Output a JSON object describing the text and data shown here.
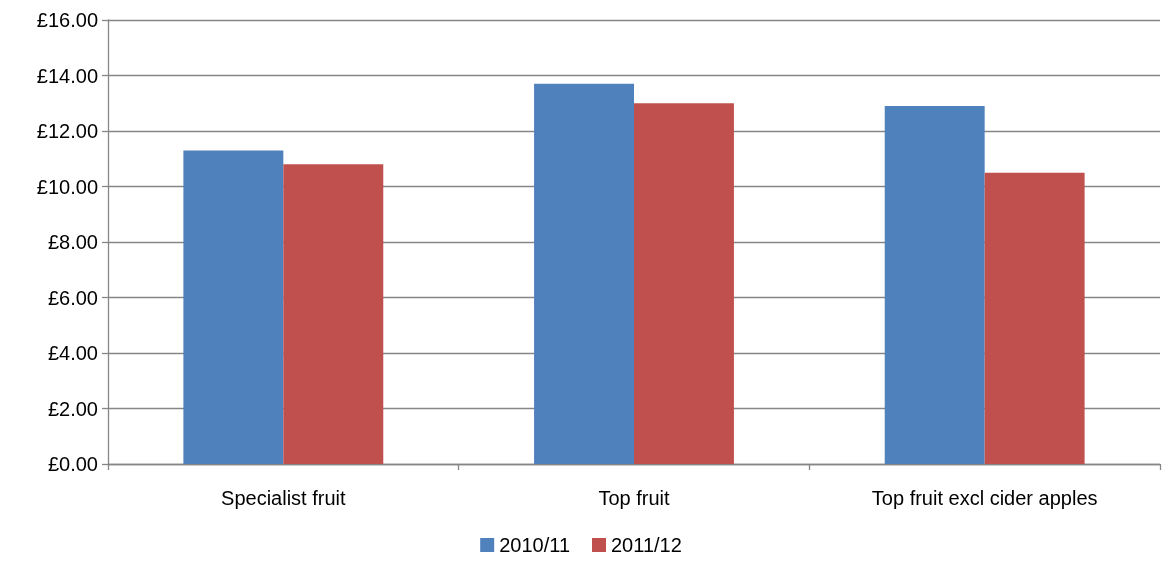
{
  "chart_data": {
    "type": "bar",
    "categories": [
      "Specialist fruit",
      "Top fruit",
      "Top fruit excl cider apples"
    ],
    "series": [
      {
        "name": "2010/11",
        "color": "#4f81bd",
        "values": [
          11.3,
          13.7,
          12.9
        ]
      },
      {
        "name": "2011/12",
        "color": "#c0504d",
        "values": [
          10.8,
          13.0,
          10.5
        ]
      }
    ],
    "ylim": [
      0,
      16
    ],
    "yticks": [
      {
        "value": 0,
        "label": "£0.00"
      },
      {
        "value": 2,
        "label": "£2.00"
      },
      {
        "value": 4,
        "label": "£4.00"
      },
      {
        "value": 6,
        "label": "£6.00"
      },
      {
        "value": 8,
        "label": "£8.00"
      },
      {
        "value": 10,
        "label": "£10.00"
      },
      {
        "value": 12,
        "label": "£12.00"
      },
      {
        "value": 14,
        "label": "£14.00"
      },
      {
        "value": 16,
        "label": "£16.00"
      }
    ],
    "grid": "y",
    "legend": "bottom"
  }
}
